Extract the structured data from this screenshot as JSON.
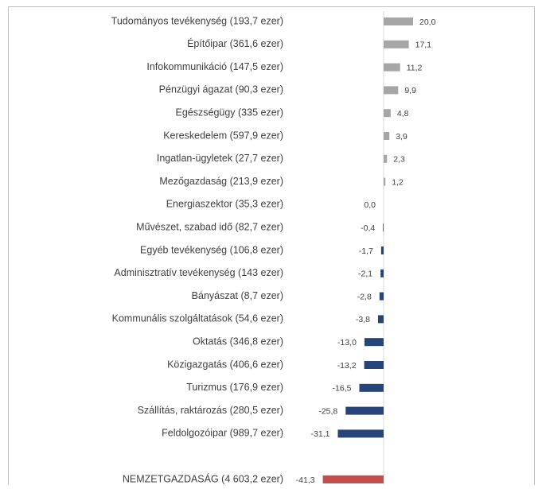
{
  "chart_data": {
    "type": "hbar",
    "categories": [
      "Tudományos tevékenység (193,7 ezer)",
      "Építőipar (361,6 ezer)",
      "Infokommunikáció (147,5 ezer)",
      "Pénzügyi ágazat (90,3 ezer)",
      "Egészségügy (335 ezer)",
      "Kereskedelem (597,9 ezer)",
      "Ingatlan-ügyletek (27,7 ezer)",
      "Mezőgazdaság (213,9 ezer)",
      "Energiaszektor (35,3 ezer)",
      "Művészet, szabad idő (82,7 ezer)",
      "Egyéb tevékenység (106,8 ezer)",
      "Adminisztratív tevékenység (143 ezer)",
      "Bányászat (8,7 ezer)",
      "Kommunális szolgáltatások (54,6 ezer)",
      "Oktatás (346,8 ezer)",
      "Közigazgatás (406,6 ezer)",
      "Turizmus (176,9 ezer)",
      "Szállítás, raktározás (280,5 ezer)",
      "Feldolgozóipar (989,7 ezer)",
      "NEMZETGAZDASÁG (4 603,2 ezer)"
    ],
    "values": [
      20.0,
      17.1,
      11.2,
      9.9,
      4.8,
      3.9,
      2.3,
      1.2,
      0.0,
      -0.4,
      -1.7,
      -2.1,
      -2.8,
      -3.8,
      -13.0,
      -13.2,
      -16.5,
      -25.8,
      -31.1,
      -41.3
    ],
    "value_labels": [
      "20,0",
      "17,1",
      "11,2",
      "9,9",
      "4,8",
      "3,9",
      "2,3",
      "1,2",
      "0,0",
      "-0,4",
      "-1,7",
      "-2,1",
      "-2,8",
      "-3,8",
      "-13,0",
      "-13,2",
      "-16,5",
      "-25,8",
      "-31,1",
      "-41,3"
    ],
    "colors": [
      "#a6a6a6",
      "#a6a6a6",
      "#a6a6a6",
      "#a6a6a6",
      "#a6a6a6",
      "#a6a6a6",
      "#a6a6a6",
      "#a6a6a6",
      "#264478",
      "#264478",
      "#264478",
      "#264478",
      "#264478",
      "#264478",
      "#264478",
      "#264478",
      "#264478",
      "#264478",
      "#264478",
      "#c0504d"
    ],
    "xlim": [
      -45,
      25
    ]
  }
}
